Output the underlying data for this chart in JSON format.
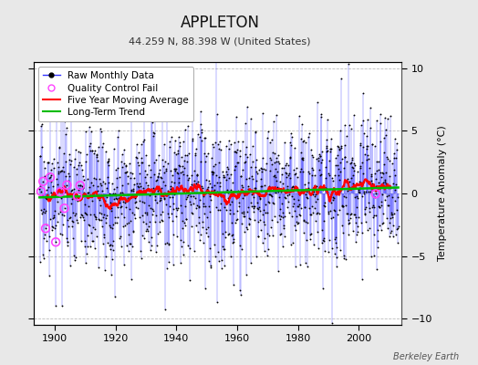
{
  "title": "APPLETON",
  "subtitle": "44.259 N, 88.398 W (United States)",
  "ylabel": "Temperature Anomaly (°C)",
  "credit": "Berkeley Earth",
  "xlim": [
    1893,
    2014
  ],
  "ylim": [
    -10.5,
    10.5
  ],
  "yticks": [
    -10,
    -5,
    0,
    5,
    10
  ],
  "xticks": [
    1900,
    1920,
    1940,
    1960,
    1980,
    2000
  ],
  "start_year": 1895,
  "end_year": 2012,
  "seed": 17,
  "raw_color": "#3333ff",
  "dot_color": "#000000",
  "qc_color": "#ff44ff",
  "moving_avg_color": "#ff0000",
  "trend_color": "#00bb00",
  "background_color": "#e8e8e8",
  "plot_bg_color": "#ffffff",
  "grid_color": "#aaaaaa",
  "title_fontsize": 12,
  "subtitle_fontsize": 8,
  "ylabel_fontsize": 8,
  "tick_fontsize": 8,
  "legend_fontsize": 7.5
}
